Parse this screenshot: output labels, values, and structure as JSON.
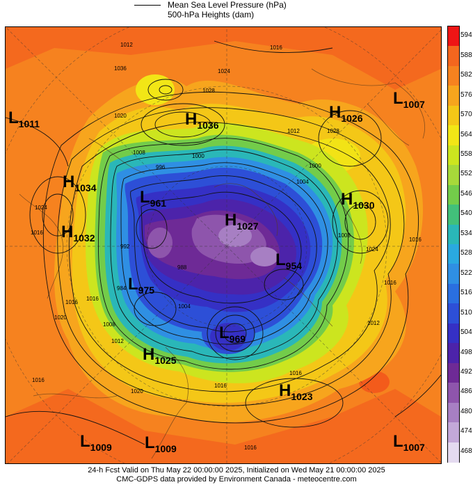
{
  "legend": {
    "mslp_label": "Mean Sea Level Pressure (hPa)",
    "heights_label": "500-hPa Heights (dam)"
  },
  "colorbar": {
    "values": [
      594,
      588,
      582,
      576,
      570,
      564,
      558,
      552,
      546,
      540,
      534,
      528,
      522,
      516,
      510,
      504,
      498,
      492,
      486,
      480,
      474,
      468
    ],
    "colors": [
      "#ee1515",
      "#f4661e",
      "#f6821f",
      "#f7a51d",
      "#f4c717",
      "#f2e616",
      "#cce51f",
      "#a7d93a",
      "#73cc4a",
      "#42c07a",
      "#2ab7b8",
      "#2aa9e0",
      "#2f8fe3",
      "#2a6fe0",
      "#2d4fd7",
      "#3530c5",
      "#4c23aa",
      "#6e2a96",
      "#8e55ac",
      "#a77fc3",
      "#c3a8d8",
      "#e4daf0"
    ]
  },
  "pressure_systems": [
    {
      "letter": "L",
      "value": "1011"
    },
    {
      "letter": "H",
      "value": "1036"
    },
    {
      "letter": "H",
      "value": "1026"
    },
    {
      "letter": "L",
      "value": "1007"
    },
    {
      "letter": "H",
      "value": "1034"
    },
    {
      "letter": "H",
      "value": "1032"
    },
    {
      "letter": "L",
      "value": "961"
    },
    {
      "letter": "H",
      "value": "1027"
    },
    {
      "letter": "H",
      "value": "1030"
    },
    {
      "letter": "L",
      "value": "954"
    },
    {
      "letter": "L",
      "value": "975"
    },
    {
      "letter": "L",
      "value": "969"
    },
    {
      "letter": "H",
      "value": "1025"
    },
    {
      "letter": "H",
      "value": "1023"
    },
    {
      "letter": "L",
      "value": "1009"
    },
    {
      "letter": "L",
      "value": "1009"
    },
    {
      "letter": "L",
      "value": "1007"
    }
  ],
  "isobar_labels": [
    "1012",
    "1016",
    "1024",
    "1028",
    "1036",
    "1020",
    "1008",
    "1000",
    "996",
    "992",
    "988",
    "984",
    "1004",
    "1016",
    "1024",
    "1016",
    "1008",
    "1012",
    "1016",
    "1016",
    "1020",
    "1016",
    "1020",
    "1028",
    "1024",
    "1016",
    "1004",
    "1000",
    "1012",
    "1016",
    "1008",
    "1012",
    "1016",
    "1016"
  ],
  "footer": {
    "valid_line": "24-h Fcst Valid on Thu May 22 00:00:00 2025, Initialized on Wed May 21 00:00:00 2025",
    "credit_line": "CMC-GDPS data provided by Environment Canada - meteocentre.com"
  }
}
